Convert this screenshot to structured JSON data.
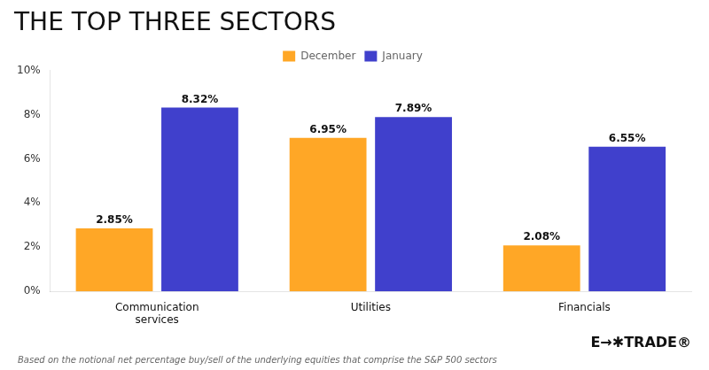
{
  "chart_data": {
    "type": "bar",
    "title": "THE TOP THREE SECTORS",
    "categories": [
      "Communication\nservices",
      "Utilities",
      "Financials"
    ],
    "series": [
      {
        "name": "December",
        "color": "#FFA726",
        "values": [
          2.85,
          6.95,
          2.08
        ],
        "value_labels": [
          "2.85%",
          "6.95%",
          "2.08%"
        ]
      },
      {
        "name": "January",
        "color": "#4040CC",
        "values": [
          8.32,
          7.89,
          6.55
        ],
        "value_labels": [
          "8.32%",
          "7.89%",
          "6.55%"
        ]
      }
    ],
    "ylim": [
      0,
      10
    ],
    "yticks": [
      {
        "value": 0,
        "label": "0%"
      },
      {
        "value": 2,
        "label": "2%"
      },
      {
        "value": 4,
        "label": "4%"
      },
      {
        "value": 6,
        "label": "6%"
      },
      {
        "value": 8,
        "label": "8%"
      },
      {
        "value": 10,
        "label": "10%"
      }
    ],
    "grid": false,
    "legend": "top",
    "data_labels": true,
    "annotations": [
      "Based on the notional net percentage buy/sell of the underlying equities that comprise the S&P 500 sectors",
      "E→✱TRADE®"
    ]
  }
}
